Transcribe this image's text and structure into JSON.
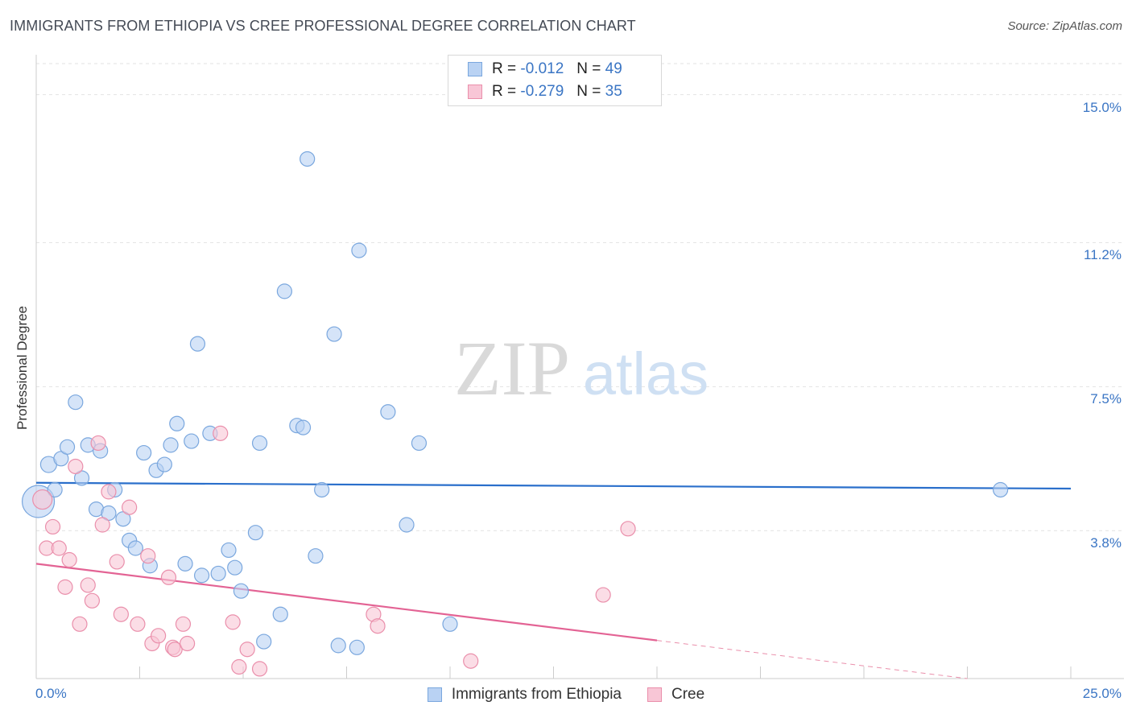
{
  "chart_data": {
    "type": "scatter",
    "title": "IMMIGRANTS FROM ETHIOPIA VS CREE PROFESSIONAL DEGREE CORRELATION CHART",
    "source": "Source: ZipAtlas.com",
    "ylabel": "Professional Degree",
    "xlabel": "",
    "xlim": [
      0,
      25
    ],
    "ylim": [
      0,
      15.8
    ],
    "x_tick_labels": [
      "0.0%",
      "25.0%"
    ],
    "y_ticks": [
      {
        "value": 15.0,
        "label": "15.0%"
      },
      {
        "value": 11.2,
        "label": "11.2%"
      },
      {
        "value": 7.5,
        "label": "7.5%"
      },
      {
        "value": 3.8,
        "label": "3.8%"
      }
    ],
    "watermark": {
      "zip": "ZIP",
      "atlas": "atlas"
    },
    "legend": {
      "r_label": "R =",
      "n_label": "N =",
      "entries": [
        {
          "r": "-0.012",
          "n": "49"
        },
        {
          "r": "-0.279",
          "n": "35"
        }
      ]
    },
    "colors": {
      "blue_fill": "#b9d2f3",
      "blue_stroke": "#7aa7de",
      "blue_line": "#2a6fcb",
      "pink_fill": "#f8c6d6",
      "pink_stroke": "#ea8fab",
      "pink_line": "#e36394",
      "axis_text": "#3a75c4"
    },
    "series": [
      {
        "name": "Immigrants from Ethiopia",
        "trend": {
          "x": [
            0,
            25
          ],
          "y": [
            5.03,
            4.88
          ]
        },
        "points": [
          [
            0.05,
            4.55,
            20
          ],
          [
            0.3,
            5.5,
            10
          ],
          [
            0.45,
            4.85,
            9
          ],
          [
            0.6,
            5.65,
            9
          ],
          [
            0.75,
            5.95,
            9
          ],
          [
            0.95,
            7.1,
            9
          ],
          [
            1.1,
            5.15,
            9
          ],
          [
            1.25,
            6.0,
            9
          ],
          [
            1.45,
            4.35,
            9
          ],
          [
            1.55,
            5.85,
            9
          ],
          [
            1.75,
            4.25,
            9
          ],
          [
            1.9,
            4.85,
            9
          ],
          [
            2.1,
            4.1,
            9
          ],
          [
            2.25,
            3.55,
            9
          ],
          [
            2.4,
            3.35,
            9
          ],
          [
            2.6,
            5.8,
            9
          ],
          [
            2.75,
            2.9,
            9
          ],
          [
            2.9,
            5.35,
            9
          ],
          [
            3.1,
            5.5,
            9
          ],
          [
            3.25,
            6.0,
            9
          ],
          [
            3.4,
            6.55,
            9
          ],
          [
            3.6,
            2.95,
            9
          ],
          [
            3.75,
            6.1,
            9
          ],
          [
            3.9,
            8.6,
            9
          ],
          [
            4.0,
            2.65,
            9
          ],
          [
            4.2,
            6.3,
            9
          ],
          [
            4.4,
            2.7,
            9
          ],
          [
            4.65,
            3.3,
            9
          ],
          [
            4.8,
            2.85,
            9
          ],
          [
            4.95,
            2.25,
            9
          ],
          [
            5.3,
            3.75,
            9
          ],
          [
            5.4,
            6.05,
            9
          ],
          [
            5.5,
            0.95,
            9
          ],
          [
            5.9,
            1.65,
            9
          ],
          [
            6.0,
            9.95,
            9
          ],
          [
            6.3,
            6.5,
            9
          ],
          [
            6.45,
            6.45,
            9
          ],
          [
            6.55,
            13.35,
            9
          ],
          [
            6.75,
            3.15,
            9
          ],
          [
            6.9,
            4.85,
            9
          ],
          [
            7.2,
            8.85,
            9
          ],
          [
            7.3,
            0.85,
            9
          ],
          [
            7.75,
            0.8,
            9
          ],
          [
            7.8,
            11.0,
            9
          ],
          [
            8.5,
            6.85,
            9
          ],
          [
            8.95,
            3.95,
            9
          ],
          [
            9.25,
            6.05,
            9
          ],
          [
            10.0,
            1.4,
            9
          ],
          [
            23.3,
            4.85,
            9
          ]
        ]
      },
      {
        "name": "Cree",
        "trend": {
          "x": [
            0,
            15
          ],
          "y": [
            2.95,
            0.98
          ]
        },
        "dash": {
          "x": [
            15,
            22.5
          ],
          "y": [
            0.98,
            -0.0
          ]
        },
        "points": [
          [
            0.15,
            4.6,
            12
          ],
          [
            0.25,
            3.35,
            9
          ],
          [
            0.4,
            3.9,
            9
          ],
          [
            0.55,
            3.35,
            9
          ],
          [
            0.7,
            2.35,
            9
          ],
          [
            0.8,
            3.05,
            9
          ],
          [
            0.95,
            5.45,
            9
          ],
          [
            1.05,
            1.4,
            9
          ],
          [
            1.25,
            2.4,
            9
          ],
          [
            1.35,
            2.0,
            9
          ],
          [
            1.5,
            6.05,
            9
          ],
          [
            1.6,
            3.95,
            9
          ],
          [
            1.75,
            4.8,
            9
          ],
          [
            1.95,
            3.0,
            9
          ],
          [
            2.05,
            1.65,
            9
          ],
          [
            2.25,
            4.4,
            9
          ],
          [
            2.45,
            1.4,
            9
          ],
          [
            2.7,
            3.15,
            9
          ],
          [
            2.8,
            0.9,
            9
          ],
          [
            2.95,
            1.1,
            9
          ],
          [
            3.2,
            2.6,
            9
          ],
          [
            3.3,
            0.8,
            9
          ],
          [
            3.35,
            0.75,
            9
          ],
          [
            3.55,
            1.4,
            9
          ],
          [
            3.65,
            0.9,
            9
          ],
          [
            4.45,
            6.3,
            9
          ],
          [
            4.75,
            1.45,
            9
          ],
          [
            4.9,
            0.3,
            9
          ],
          [
            5.1,
            0.75,
            9
          ],
          [
            5.4,
            0.25,
            9
          ],
          [
            8.15,
            1.65,
            9
          ],
          [
            8.25,
            1.35,
            9
          ],
          [
            10.5,
            0.45,
            9
          ],
          [
            13.7,
            2.15,
            9
          ],
          [
            14.3,
            3.85,
            9
          ]
        ]
      }
    ]
  }
}
